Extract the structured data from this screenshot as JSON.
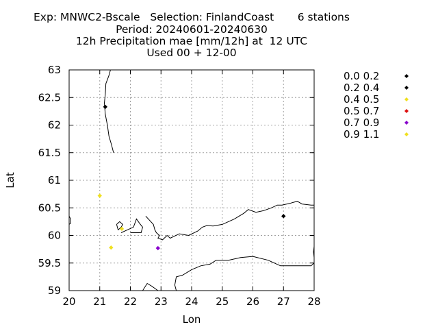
{
  "chart_data": {
    "type": "scatter",
    "title_lines": [
      "Exp: MNWC2-Bscale   Selection: FinlandCoast       6 stations",
      "Period: 20240601-20240630",
      "12h Precipitation mae [mm/12h] at  12 UTC",
      "Used 00 + 12-00"
    ],
    "xlabel": "Lon",
    "ylabel": "Lat",
    "xlim": [
      20,
      28
    ],
    "ylim": [
      59,
      63
    ],
    "xticks": [
      20,
      21,
      22,
      23,
      24,
      25,
      26,
      27,
      28
    ],
    "yticks": [
      59,
      59.5,
      60,
      60.5,
      61,
      61.5,
      62,
      62.5,
      63
    ],
    "xtick_labels": [
      "20",
      "21",
      "22",
      "23",
      "24",
      "25",
      "26",
      "27",
      "28"
    ],
    "ytick_labels": [
      "59",
      "59.5",
      "60",
      "60.5",
      "61",
      "61.5",
      "62",
      "62.5",
      "63"
    ],
    "grid": true,
    "legend_position": "right",
    "legend": [
      {
        "label": "0.0 0.2",
        "color": "#000000"
      },
      {
        "label": "0.2 0.4",
        "color": "#000000"
      },
      {
        "label": "0.4 0.5",
        "color": "#f0e020"
      },
      {
        "label": "0.5 0.7",
        "color": "#dd1111"
      },
      {
        "label": "0.7 0.9",
        "color": "#8800cc"
      },
      {
        "label": "0.9 1.1",
        "color": "#f0e020"
      }
    ],
    "points": [
      {
        "lon": 21.18,
        "lat": 62.33,
        "class": 1
      },
      {
        "lon": 27.0,
        "lat": 60.35,
        "class": 1
      },
      {
        "lon": 21.0,
        "lat": 60.72,
        "class": 2
      },
      {
        "lon": 21.72,
        "lat": 60.12,
        "class": 2
      },
      {
        "lon": 21.37,
        "lat": 59.78,
        "class": 2
      },
      {
        "lon": 22.9,
        "lat": 59.77,
        "class": 4
      }
    ],
    "coastlines": [
      [
        [
          21.35,
          63.0
        ],
        [
          21.3,
          62.9
        ],
        [
          21.2,
          62.75
        ],
        [
          21.18,
          62.55
        ],
        [
          21.15,
          62.4
        ],
        [
          21.18,
          62.2
        ],
        [
          21.25,
          62.0
        ],
        [
          21.3,
          61.8
        ],
        [
          21.38,
          61.65
        ],
        [
          21.45,
          61.5
        ]
      ],
      [
        [
          20.0,
          60.35
        ],
        [
          20.05,
          60.3
        ],
        [
          20.05,
          60.22
        ],
        [
          20.0,
          60.2
        ]
      ],
      [
        [
          21.55,
          60.2
        ],
        [
          21.65,
          60.25
        ],
        [
          21.75,
          60.2
        ],
        [
          21.7,
          60.15
        ],
        [
          21.6,
          60.1
        ],
        [
          21.55,
          60.2
        ]
      ],
      [
        [
          21.7,
          60.05
        ],
        [
          21.9,
          60.1
        ],
        [
          22.1,
          60.15
        ],
        [
          22.2,
          60.3
        ],
        [
          22.3,
          60.22
        ],
        [
          22.4,
          60.15
        ],
        [
          22.35,
          60.05
        ],
        [
          22.2,
          60.05
        ],
        [
          22.0,
          60.05
        ]
      ],
      [
        [
          22.5,
          60.35
        ],
        [
          22.75,
          60.2
        ],
        [
          22.8,
          60.1
        ],
        [
          22.85,
          60.05
        ],
        [
          22.95,
          60.0
        ],
        [
          22.9,
          59.95
        ],
        [
          23.05,
          59.92
        ],
        [
          23.2,
          60.0
        ],
        [
          23.3,
          59.95
        ],
        [
          23.6,
          60.03
        ],
        [
          23.9,
          60.0
        ],
        [
          24.2,
          60.08
        ],
        [
          24.35,
          60.15
        ],
        [
          24.5,
          60.18
        ],
        [
          24.7,
          60.17
        ],
        [
          25.0,
          60.2
        ],
        [
          25.2,
          60.25
        ],
        [
          25.4,
          60.3
        ],
        [
          25.55,
          60.35
        ],
        [
          25.7,
          60.4
        ],
        [
          25.85,
          60.47
        ],
        [
          26.1,
          60.42
        ],
        [
          26.35,
          60.45
        ],
        [
          26.6,
          60.5
        ],
        [
          26.8,
          60.55
        ],
        [
          26.95,
          60.55
        ],
        [
          27.2,
          60.58
        ],
        [
          27.45,
          60.62
        ],
        [
          27.6,
          60.57
        ],
        [
          27.9,
          60.55
        ],
        [
          28.0,
          60.55
        ]
      ],
      [
        [
          28.0,
          59.8
        ],
        [
          27.98,
          59.7
        ],
        [
          28.0,
          59.6
        ]
      ],
      [
        [
          23.5,
          59.0
        ],
        [
          23.45,
          59.1
        ],
        [
          23.5,
          59.25
        ],
        [
          23.7,
          59.28
        ],
        [
          24.0,
          59.38
        ],
        [
          24.3,
          59.45
        ],
        [
          24.6,
          59.48
        ],
        [
          24.8,
          59.55
        ],
        [
          25.2,
          59.55
        ],
        [
          25.6,
          59.6
        ],
        [
          26.0,
          59.62
        ],
        [
          26.5,
          59.55
        ],
        [
          26.9,
          59.45
        ],
        [
          27.4,
          59.45
        ],
        [
          27.9,
          59.45
        ],
        [
          28.0,
          59.5
        ]
      ],
      [
        [
          22.4,
          59.0
        ],
        [
          22.55,
          59.13
        ],
        [
          22.7,
          59.08
        ],
        [
          22.9,
          59.0
        ]
      ]
    ]
  }
}
